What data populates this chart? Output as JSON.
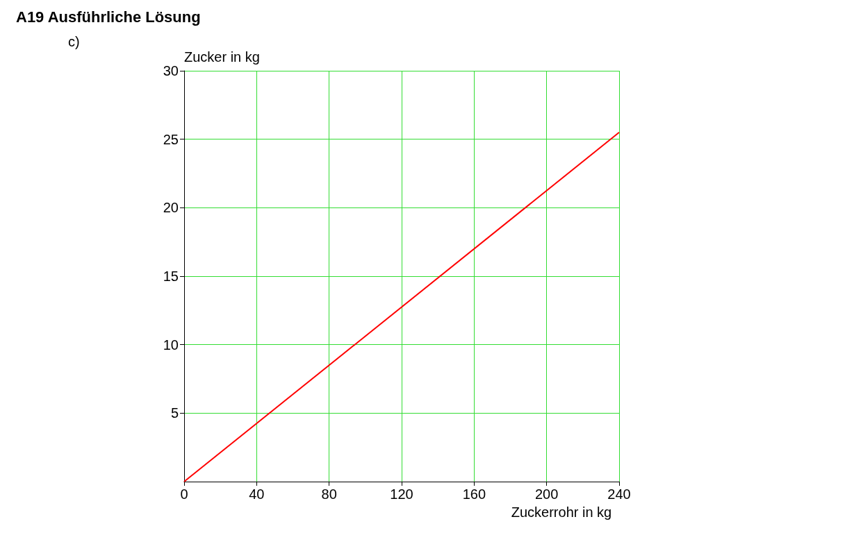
{
  "chart_data": {
    "type": "line",
    "title": "A19 Ausführliche Lösung",
    "annotations": [
      "c)"
    ],
    "xlabel": "Zuckerrohr in kg",
    "ylabel": "Zucker in kg",
    "x": [
      0,
      240
    ],
    "series": [
      {
        "color": "#ff0000",
        "values": [
          0,
          25.5
        ]
      }
    ],
    "xlim": [
      0,
      240
    ],
    "xticks": [
      0,
      40,
      80,
      120,
      160,
      200,
      240
    ],
    "ylim": [
      0,
      30
    ],
    "yticks": [
      5,
      10,
      15,
      20,
      25,
      30
    ],
    "grid": true,
    "marker": "none",
    "line_style": "solid"
  }
}
